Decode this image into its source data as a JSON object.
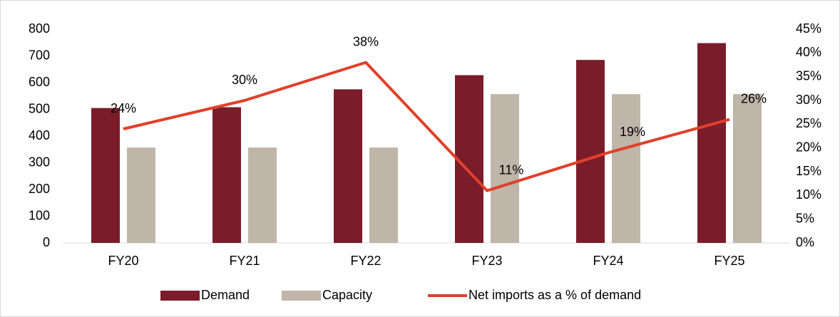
{
  "chart_data": {
    "type": "combo",
    "categories": [
      "FY20",
      "FY21",
      "FY22",
      "FY23",
      "FY24",
      "FY25"
    ],
    "series": [
      {
        "name": "Demand",
        "type": "bar",
        "color": "#7b1c2a",
        "values": [
          505,
          508,
          575,
          628,
          685,
          748
        ]
      },
      {
        "name": "Capacity",
        "type": "bar",
        "color": "#bfb5a8",
        "values": [
          357,
          357,
          357,
          557,
          557,
          557
        ]
      },
      {
        "name": "Net imports as a % of demand",
        "type": "line",
        "axis": "y2",
        "color": "#e0402a",
        "values": [
          24,
          30,
          38,
          11,
          19,
          26
        ],
        "value_labels": [
          "24%",
          "30%",
          "38%",
          "11%",
          "19%",
          "26%"
        ]
      }
    ],
    "ylim": [
      0,
      800
    ],
    "yticks": [
      0,
      100,
      200,
      300,
      400,
      500,
      600,
      700,
      800
    ],
    "y2lim": [
      0,
      45
    ],
    "y2ticks": [
      {
        "value": 0,
        "label": "0%"
      },
      {
        "value": 5,
        "label": "5%"
      },
      {
        "value": 10,
        "label": "10%"
      },
      {
        "value": 15,
        "label": "15%"
      },
      {
        "value": 20,
        "label": "20%"
      },
      {
        "value": 25,
        "label": "25%"
      },
      {
        "value": 30,
        "label": "30%"
      },
      {
        "value": 35,
        "label": "35%"
      },
      {
        "value": 40,
        "label": "40%"
      },
      {
        "value": 45,
        "label": "45%"
      }
    ],
    "legend": "bottom"
  }
}
